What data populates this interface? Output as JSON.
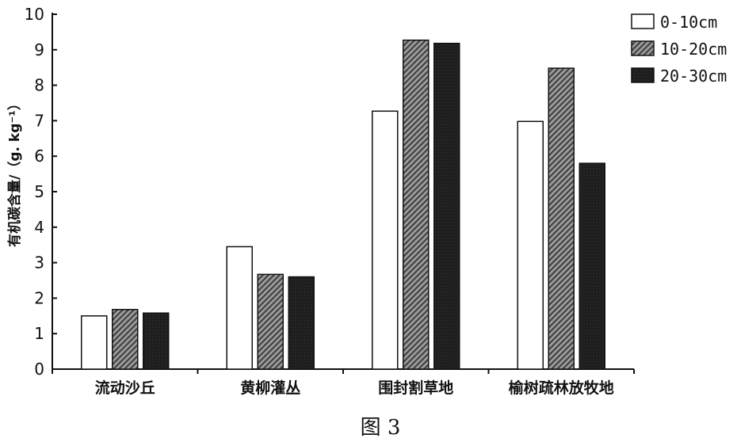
{
  "chart_data": {
    "type": "bar",
    "ylabel": "有机碳含量/（g. kg⁻¹）",
    "ylim": [
      0,
      10
    ],
    "yticks": [
      0,
      1,
      2,
      3,
      4,
      5,
      6,
      7,
      8,
      9,
      10
    ],
    "categories": [
      "流动沙丘",
      "黄柳灌丛",
      "围封割草地",
      "榆树疏林放牧地"
    ],
    "series": [
      {
        "name": "0-10cm",
        "values": [
          1.5,
          3.45,
          7.27,
          6.98
        ],
        "fill": "white"
      },
      {
        "name": "10-20cm",
        "values": [
          1.68,
          2.67,
          9.27,
          8.48
        ],
        "fill": "hatched-grey"
      },
      {
        "name": "20-30cm",
        "values": [
          1.58,
          2.6,
          9.18,
          5.8
        ],
        "fill": "dark"
      }
    ],
    "legend_position": "top-right",
    "grid": false
  },
  "caption": "图 3"
}
